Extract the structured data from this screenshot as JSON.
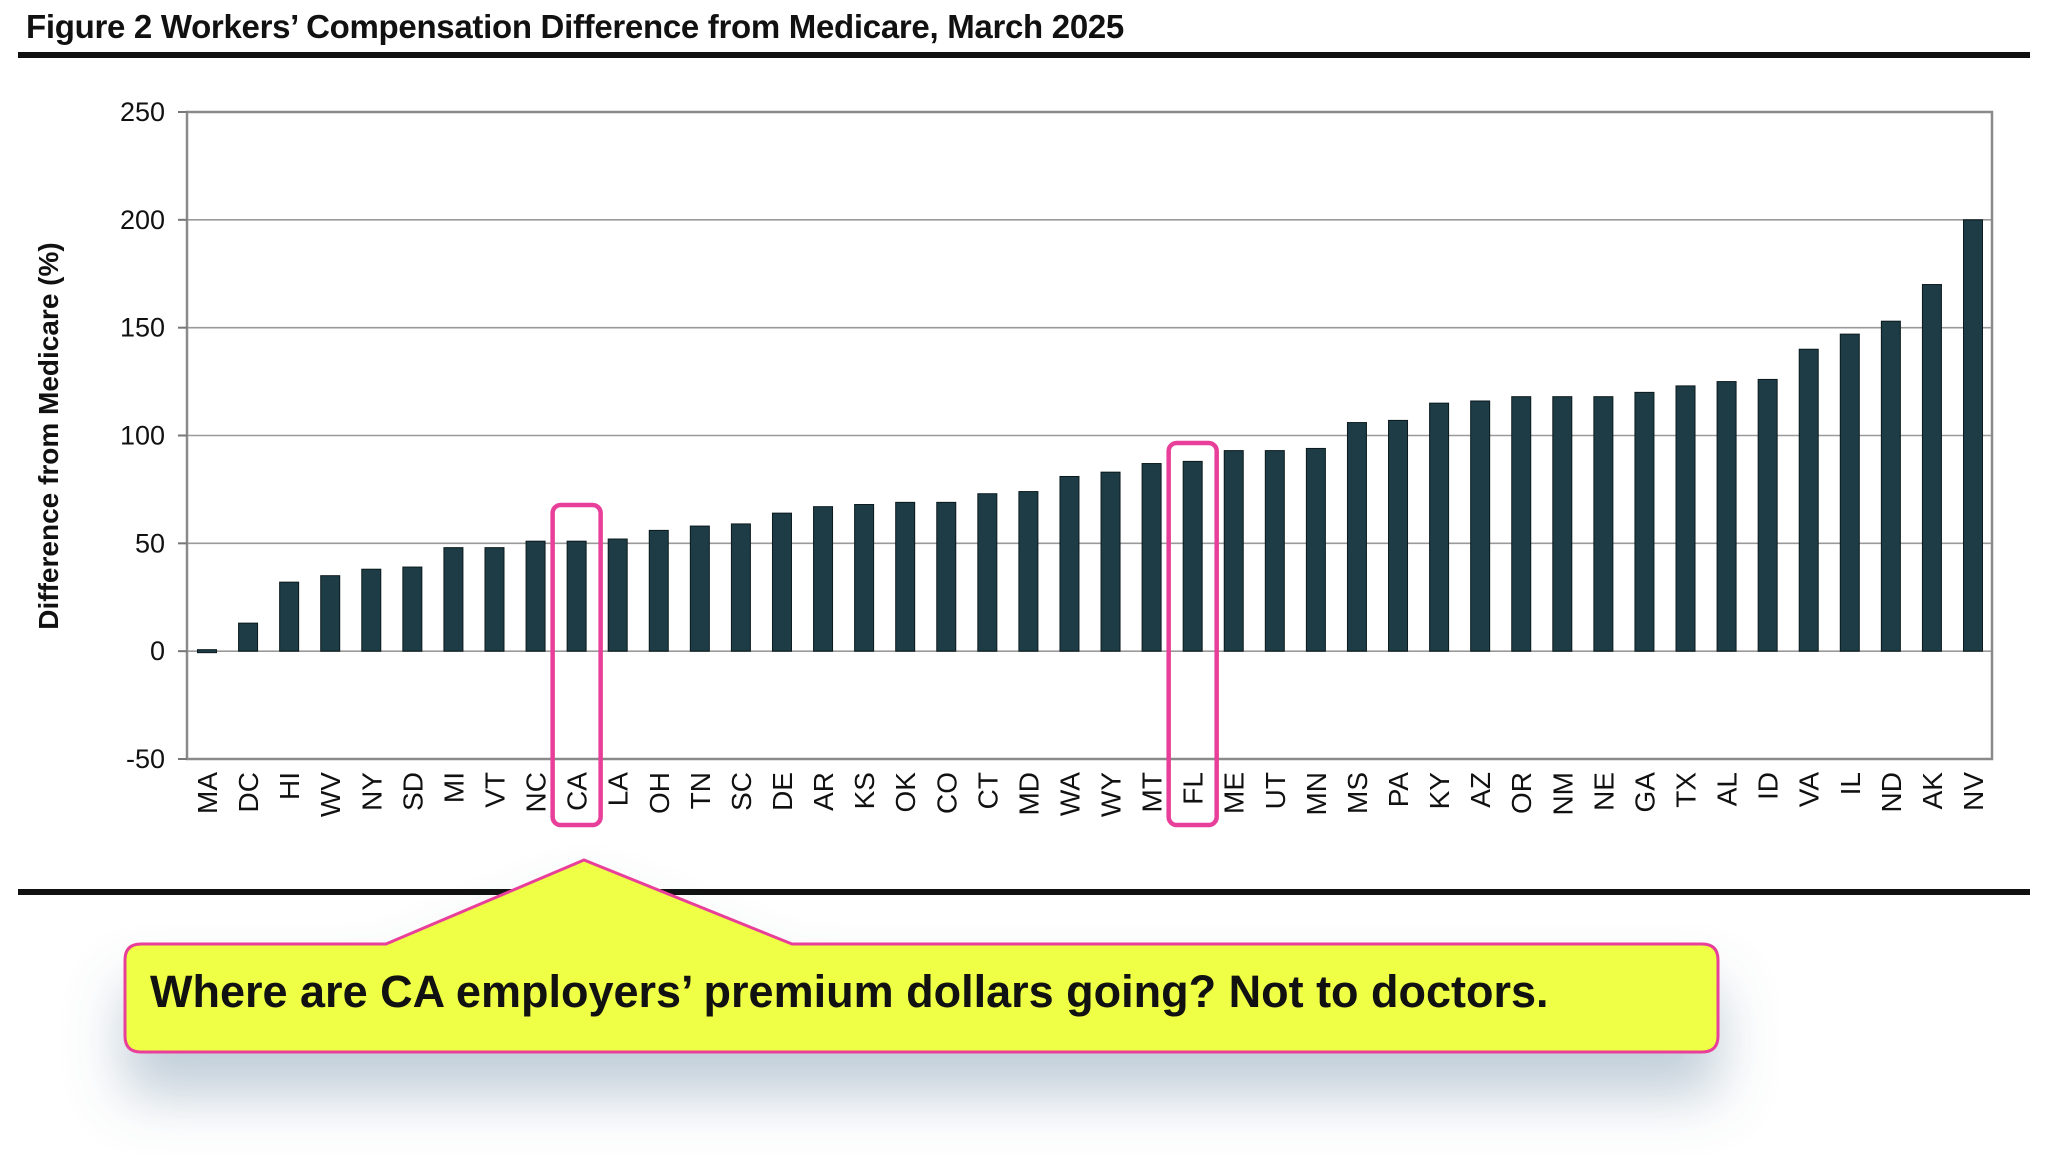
{
  "figure": {
    "title": "Figure 2  Workers’ Compensation Difference from Medicare, March 2025"
  },
  "chart_data": {
    "type": "bar",
    "title": "Figure 2  Workers’ Compensation Difference from Medicare, March 2025",
    "xlabel": "",
    "ylabel": "Difference from Medicare (%)",
    "ylim": [
      -50,
      250
    ],
    "yticks": [
      250,
      200,
      150,
      100,
      50,
      0,
      -50
    ],
    "grid": true,
    "bar_color": "#1d3c45",
    "categories": [
      "MA",
      "DC",
      "HI",
      "WV",
      "NY",
      "SD",
      "MI",
      "VT",
      "NC",
      "CA",
      "LA",
      "OH",
      "TN",
      "SC",
      "DE",
      "AR",
      "KS",
      "OK",
      "CO",
      "CT",
      "MD",
      "WA",
      "WY",
      "MT",
      "FL",
      "ME",
      "UT",
      "MN",
      "MS",
      "PA",
      "KY",
      "AZ",
      "OR",
      "NM",
      "NE",
      "GA",
      "TX",
      "AL",
      "ID",
      "VA",
      "IL",
      "ND",
      "AK",
      "NV"
    ],
    "values": [
      -1,
      13,
      32,
      35,
      38,
      39,
      48,
      48,
      51,
      51,
      52,
      56,
      58,
      59,
      64,
      67,
      68,
      69,
      69,
      73,
      74,
      81,
      83,
      87,
      88,
      93,
      93,
      94,
      106,
      107,
      115,
      116,
      118,
      118,
      118,
      120,
      123,
      125,
      126,
      140,
      147,
      153,
      170,
      200
    ],
    "highlighted": [
      "CA",
      "FL"
    ],
    "highlight_color": "#e8409a"
  },
  "callout": {
    "text": "Where are CA employers’ premium dollars going? Not to doctors.",
    "fill": "#eeff44",
    "border": "#e8409a"
  }
}
